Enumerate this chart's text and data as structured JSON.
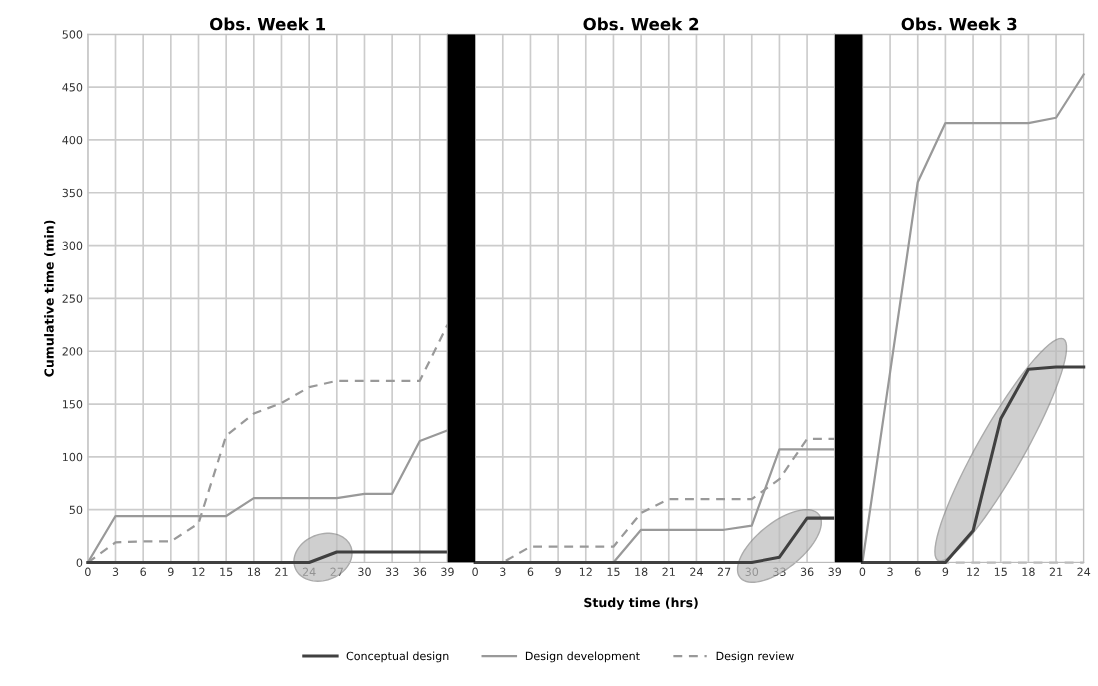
{
  "chart_data": [
    {
      "type": "line",
      "title": "Obs. Week 1",
      "ylabel": "Cumulative time (min)",
      "xlim": [
        0,
        39
      ],
      "ylim": [
        0,
        500
      ],
      "xticks": [
        0,
        3,
        6,
        9,
        12,
        15,
        18,
        21,
        24,
        27,
        30,
        33,
        36,
        39
      ],
      "yticks": [
        0,
        50,
        100,
        150,
        200,
        250,
        300,
        350,
        400,
        450,
        500
      ],
      "x": [
        0,
        3,
        6,
        9,
        12,
        15,
        18,
        21,
        24,
        27,
        30,
        33,
        36,
        39
      ],
      "series": [
        {
          "name": "Conceptual design",
          "color": "#404040",
          "line_style": "solid",
          "values": [
            0,
            0,
            0,
            0,
            0,
            0,
            0,
            0,
            0,
            10,
            10,
            10,
            10,
            10
          ]
        },
        {
          "name": "Design development",
          "color": "#999999",
          "line_style": "solid",
          "values": [
            0,
            44,
            44,
            44,
            44,
            44,
            61,
            61,
            61,
            61,
            65,
            65,
            115,
            125
          ]
        },
        {
          "name": "Design review",
          "color": "#999999",
          "line_style": "dashed",
          "values": [
            0,
            19,
            20,
            20,
            37,
            120,
            141,
            151,
            166,
            172,
            172,
            172,
            172,
            225
          ]
        }
      ],
      "grid": true,
      "legend": "bottom",
      "marker": "none"
    },
    {
      "type": "line",
      "title": "Obs. Week 2",
      "xlabel": "Study time (hrs)",
      "xlim": [
        -3,
        39
      ],
      "ylim": [
        0,
        500
      ],
      "xticks": [
        0,
        3,
        6,
        9,
        12,
        15,
        18,
        21,
        24,
        27,
        30,
        33,
        36,
        39
      ],
      "yticks": [
        0,
        50,
        100,
        150,
        200,
        250,
        300,
        350,
        400,
        450,
        500
      ],
      "x": [
        0,
        3,
        6,
        9,
        12,
        15,
        18,
        21,
        24,
        27,
        30,
        33,
        36,
        39
      ],
      "series": [
        {
          "color": "#404040",
          "line_style": "solid",
          "values": [
            0,
            0,
            0,
            0,
            0,
            0,
            0,
            0,
            0,
            0,
            0,
            5,
            42,
            42
          ]
        },
        {
          "color": "#999999",
          "line_style": "solid",
          "values": [
            0,
            0,
            0,
            0,
            0,
            0,
            31,
            31,
            31,
            31,
            35,
            107,
            107,
            107
          ]
        },
        {
          "color": "#999999",
          "line_style": "dashed",
          "values": [
            0,
            0,
            15,
            15,
            15,
            15,
            47,
            60,
            60,
            60,
            60,
            79,
            117,
            117
          ]
        }
      ],
      "bands": [
        {
          "axis": "x",
          "from": -3,
          "to": 0,
          "color": "#000000"
        }
      ],
      "grid": true,
      "marker": "none",
      "tick_labels": "x"
    },
    {
      "type": "line",
      "title": "Obs. Week 3",
      "xlim": [
        -3,
        24
      ],
      "ylim": [
        0,
        500
      ],
      "xticks": [
        0,
        3,
        6,
        9,
        12,
        15,
        18,
        21,
        24
      ],
      "yticks": [
        0,
        50,
        100,
        150,
        200,
        250,
        300,
        350,
        400,
        450,
        500
      ],
      "x": [
        0,
        3,
        6,
        9,
        12,
        15,
        18,
        21,
        24
      ],
      "series": [
        {
          "color": "#404040",
          "line_style": "solid",
          "values": [
            0,
            0,
            0,
            0,
            30,
            136,
            183,
            185,
            185
          ]
        },
        {
          "color": "#999999",
          "line_style": "solid",
          "values": [
            0,
            180,
            360,
            416,
            416,
            416,
            416,
            421,
            462
          ]
        },
        {
          "color": "#bbbbbb",
          "line_style": "dashed",
          "values": [
            0,
            0,
            0,
            0,
            0,
            0,
            0,
            0,
            0
          ]
        }
      ],
      "bands": [
        {
          "axis": "x",
          "from": -3,
          "to": 0,
          "color": "#000000"
        }
      ],
      "grid": true,
      "marker": "none",
      "tick_labels": "x"
    }
  ]
}
